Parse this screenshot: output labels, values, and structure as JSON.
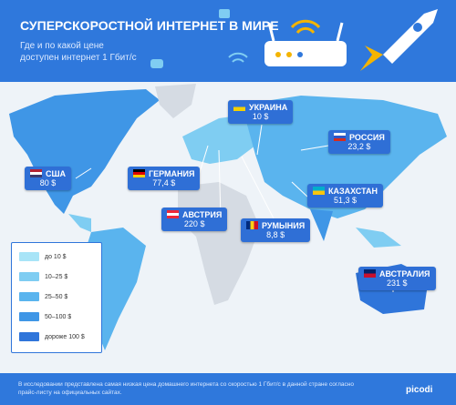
{
  "header": {
    "title": "СУПЕРСКОРОСТНОЙ ИНТЕРНЕТ В МИРЕ",
    "subtitle_lines": [
      "Где и по какой цене",
      "доступен интернет 1 Гбит/с"
    ]
  },
  "countries": [
    {
      "name": "УКРАИНА",
      "price": "10 $"
    },
    {
      "name": "РОССИЯ",
      "price": "23,2 $"
    },
    {
      "name": "США",
      "price": "80 $"
    },
    {
      "name": "ГЕРМАНИЯ",
      "price": "77,4 $"
    },
    {
      "name": "КАЗАХСТАН",
      "price": "51,3 $"
    },
    {
      "name": "АВСТРИЯ",
      "price": "220 $"
    },
    {
      "name": "РУМЫНИЯ",
      "price": "8,8 $"
    },
    {
      "name": "АВСТРАЛИЯ",
      "price": "231 $"
    }
  ],
  "legend": [
    {
      "label": "до 10 $",
      "color": "#a8e4f7"
    },
    {
      "label": "10–25 $",
      "color": "#7fcdf2"
    },
    {
      "label": "25–50 $",
      "color": "#5ab4ee"
    },
    {
      "label": "50–100 $",
      "color": "#3f96e6"
    },
    {
      "label": "дороже 100 $",
      "color": "#2f75da"
    }
  ],
  "footer": {
    "text": "В исследовании представлена самая низкая цена домашнего интернета со скоростью 1 Гбит/с в данной стране согласно прайс-листу на официальных сайтах.",
    "logo": "picodi"
  }
}
